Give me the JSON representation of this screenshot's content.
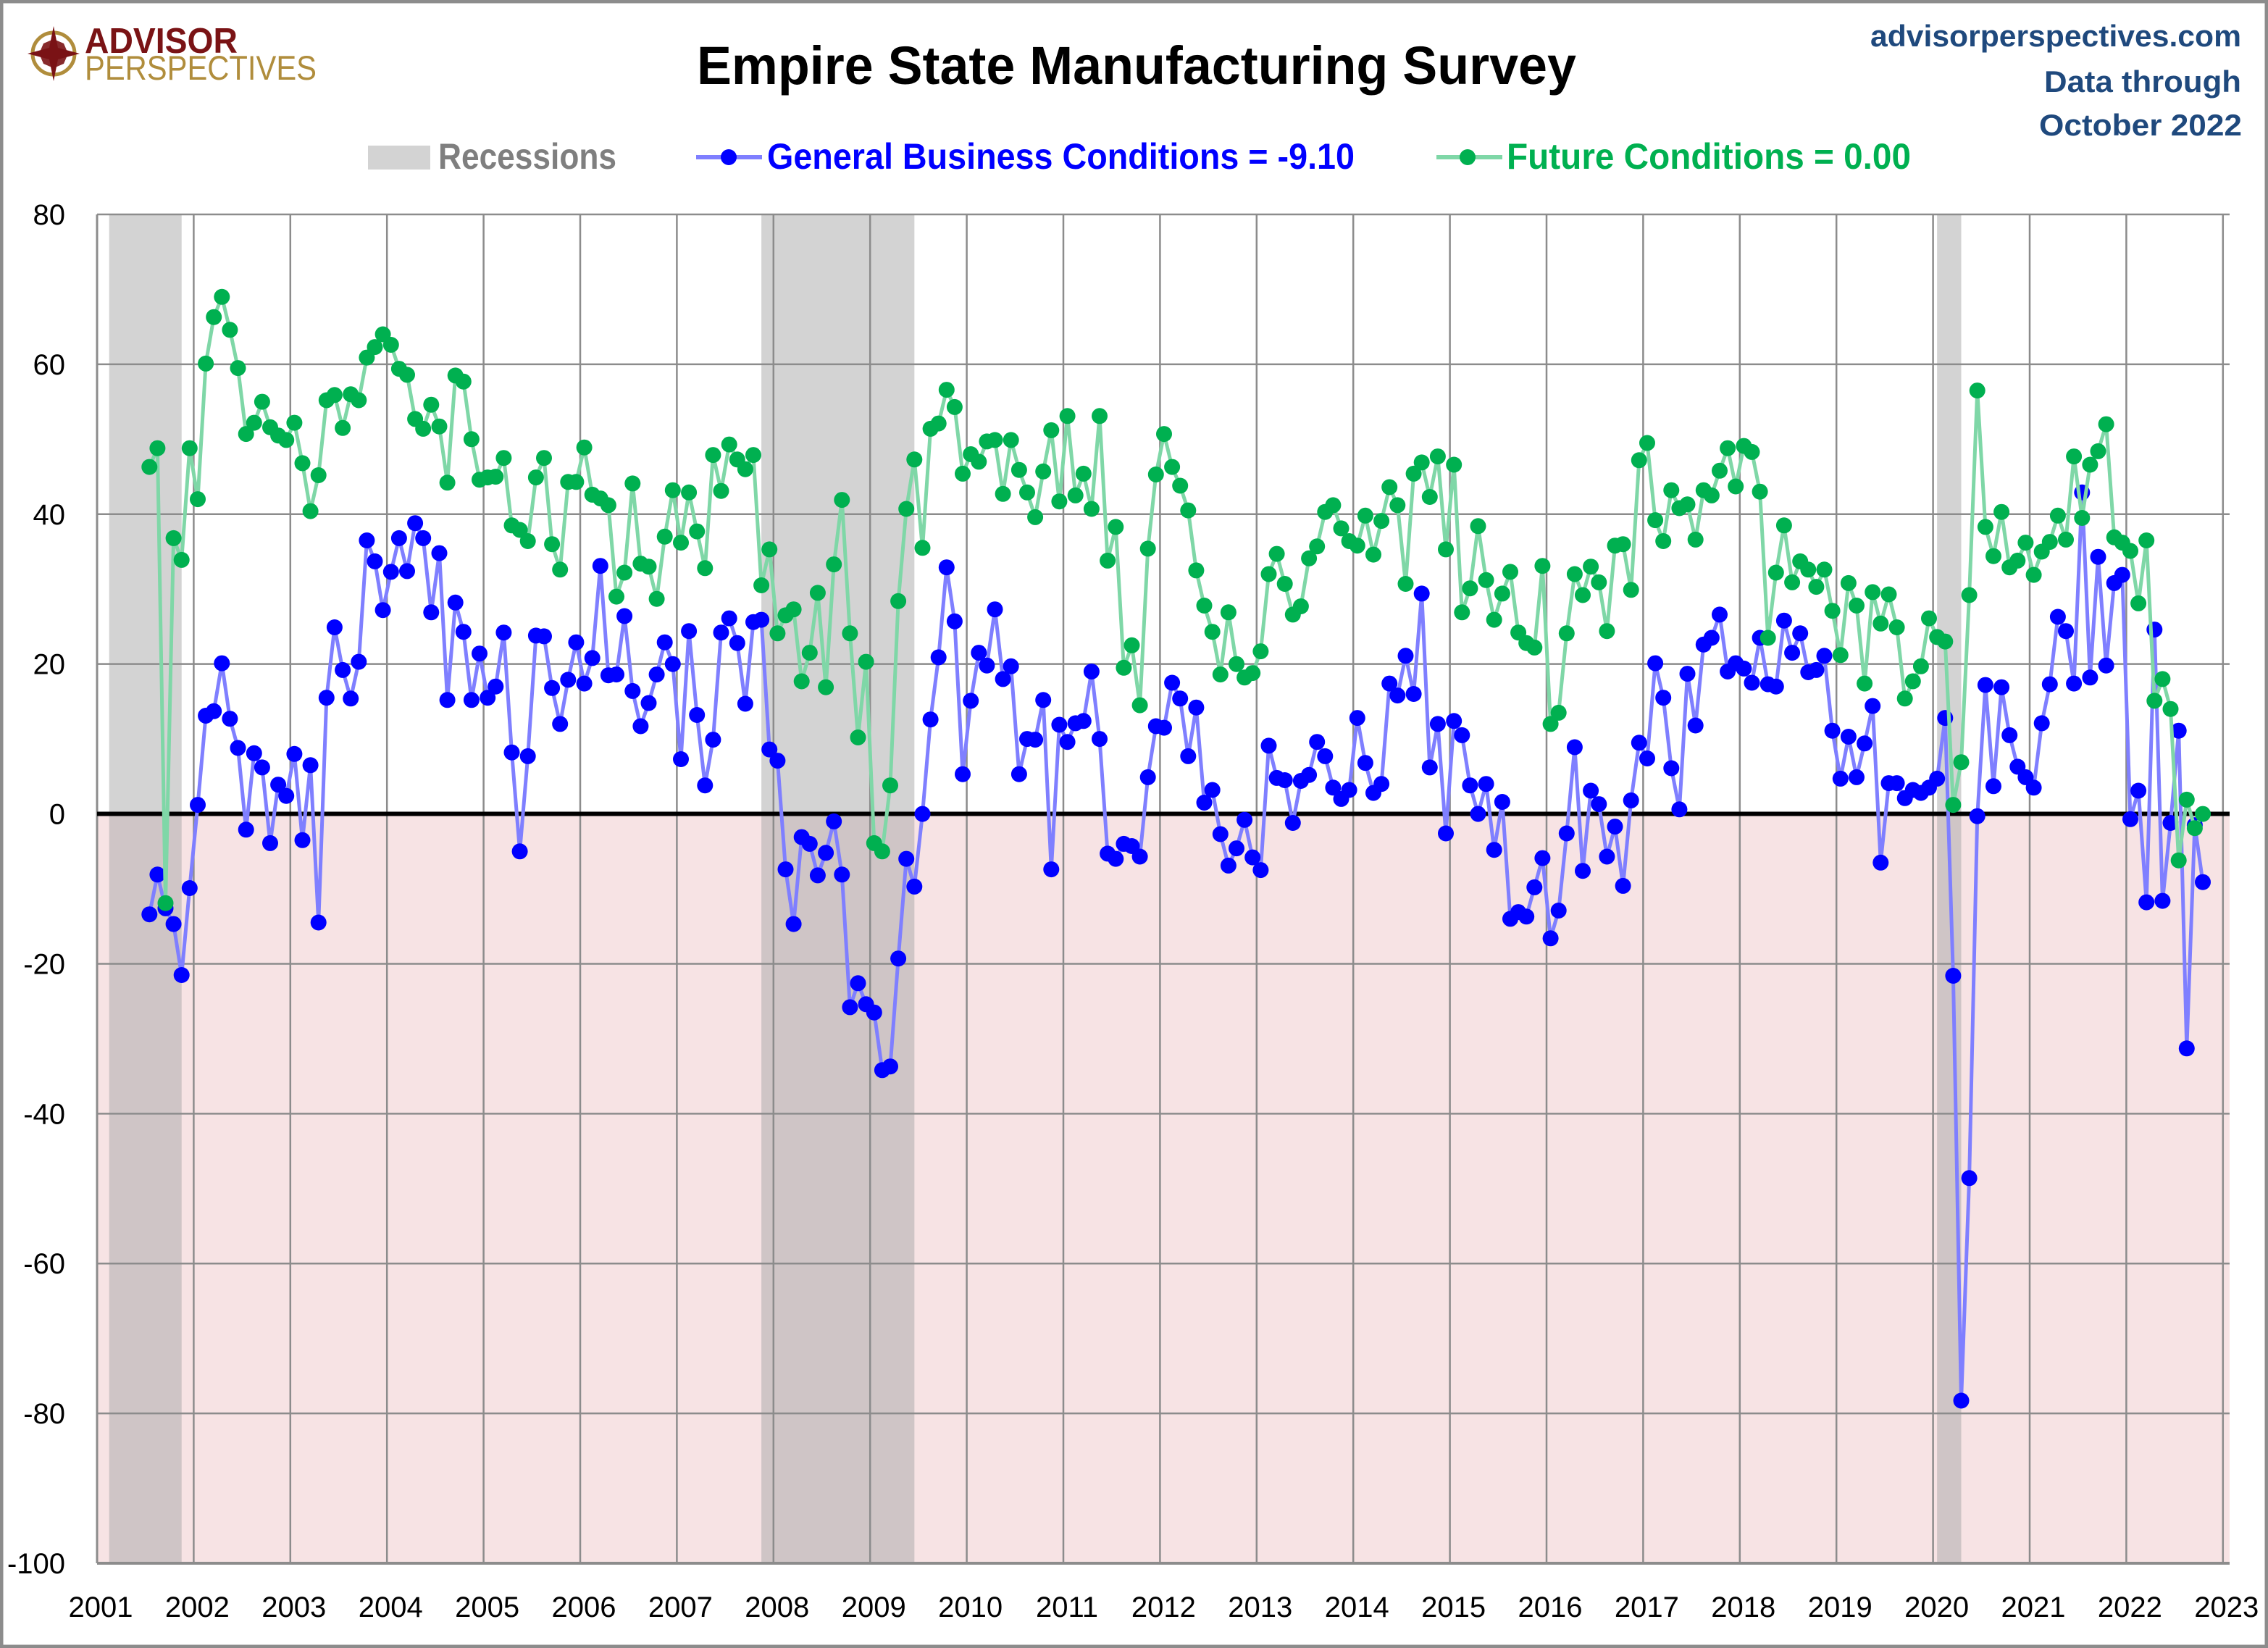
{
  "header": {
    "logo_line1": "ADVISOR",
    "logo_line2": "PERSPECTIVES",
    "site": "advisorperspectives.com",
    "data_through_line1": "Data through",
    "data_through_line2": "October 2022"
  },
  "colors": {
    "logo_red": "#7a1315",
    "logo_gold": "#b08d3c",
    "site_text": "#1f497d",
    "recession_legend": "#d3d3d3",
    "recession_text": "#7f7f7f",
    "gbc": "#0000ff",
    "gbc_line": "#7f7fff",
    "future": "#00b050",
    "future_line": "#7fd7a7",
    "negative_zone": "#f7e3e4",
    "grid": "#8c8c8c"
  },
  "chart_data": {
    "type": "line",
    "title": "Empire State Manufacturing Survey",
    "xlabel": "",
    "ylabel": "",
    "ylim": [
      -100,
      80
    ],
    "xlim": [
      "2001-01",
      "2023-01"
    ],
    "grid": true,
    "legend_position": "top",
    "yticks": [
      80,
      60,
      40,
      20,
      0,
      -20,
      -40,
      -60,
      -80,
      -100
    ],
    "ytick_labels": [
      "80",
      "60",
      "40",
      "20",
      "0",
      "-20",
      "-40",
      "-60",
      "-80",
      "-100"
    ],
    "xtick_labels": [
      "2001",
      "2002",
      "2003",
      "2004",
      "2005",
      "2006",
      "2007",
      "2008",
      "2009",
      "2010",
      "2011",
      "2012",
      "2013",
      "2014",
      "2015",
      "2016",
      "2017",
      "2018",
      "2019",
      "2020",
      "2021",
      "2022",
      "2023"
    ],
    "reference_line": 0,
    "negative_region_shaded": true,
    "legend": {
      "recessions": "Recessions",
      "gbc": "General Business Conditions = -9.10",
      "future": "Future Conditions = 0.00"
    },
    "recessions": [
      {
        "start": "2001-03",
        "end": "2001-11"
      },
      {
        "start": "2007-12",
        "end": "2009-06"
      },
      {
        "start": "2020-02",
        "end": "2020-04"
      }
    ],
    "x_start": "2001-07",
    "x_end": "2022-10",
    "frequency": "monthly",
    "series": [
      {
        "name": "General Business Conditions",
        "latest": -9.1,
        "values": [
          -13.4,
          -8.1,
          -12.6,
          -14.7,
          -21.5,
          -9.9,
          1.2,
          13.1,
          13.7,
          20.1,
          12.7,
          8.8,
          -2.1,
          8.1,
          6.2,
          -3.9,
          3.9,
          2.4,
          8.0,
          -3.5,
          6.5,
          -14.5,
          15.5,
          24.9,
          19.2,
          15.4,
          20.3,
          36.5,
          33.7,
          27.2,
          32.3,
          36.8,
          32.4,
          38.8,
          36.8,
          26.9,
          34.8,
          15.2,
          28.2,
          24.3,
          15.2,
          21.4,
          15.5,
          17.0,
          24.2,
          8.2,
          -5.0,
          7.7,
          23.8,
          23.7,
          16.8,
          12.0,
          17.9,
          22.9,
          17.4,
          20.8,
          33.1,
          18.5,
          18.6,
          26.4,
          16.4,
          11.7,
          14.8,
          18.6,
          22.9,
          20.0,
          7.3,
          24.4,
          13.2,
          3.8,
          9.9,
          24.2,
          26.1,
          22.8,
          14.7,
          25.6,
          25.9,
          8.6,
          7.1,
          -7.4,
          -14.7,
          -3.1,
          -4.0,
          -8.2,
          -5.2,
          -1.0,
          -8.1,
          -25.8,
          -22.6,
          -25.4,
          -26.5,
          -34.2,
          -33.7,
          -19.3,
          -6.0,
          -9.7,
          0.0,
          12.6,
          20.9,
          32.9,
          25.7,
          5.3,
          15.1,
          21.5,
          19.8,
          27.3,
          18.0,
          19.7,
          5.3,
          10.0,
          9.9,
          15.2,
          -7.4,
          11.9,
          9.6,
          12.1,
          12.4,
          19.0,
          10.0,
          -5.3,
          -6.0,
          -4.0,
          -4.3,
          -5.7,
          4.9,
          11.7,
          11.5,
          17.5,
          15.4,
          7.7,
          14.2,
          1.5,
          3.2,
          -2.7,
          -6.9,
          -4.6,
          -0.8,
          -5.8,
          -7.5,
          9.1,
          4.8,
          4.5,
          -1.2,
          4.4,
          5.2,
          9.6,
          7.7,
          3.5,
          2.0,
          3.2,
          12.8,
          6.8,
          2.8,
          4.0,
          17.4,
          15.8,
          21.1,
          16.0,
          29.4,
          6.2,
          12.0,
          -2.6,
          12.4,
          10.5,
          3.8,
          0.0,
          4.0,
          -4.8,
          1.6,
          -14.0,
          -13.1,
          -13.7,
          -9.8,
          -5.9,
          -16.6,
          -12.9,
          -2.6,
          8.9,
          -7.6,
          3.1,
          1.3,
          -5.7,
          -1.7,
          -9.6,
          1.8,
          9.5,
          7.4,
          20.1,
          15.5,
          6.1,
          0.6,
          18.7,
          11.8,
          22.6,
          23.5,
          26.6,
          19.0,
          20.1,
          19.4,
          17.5,
          23.5,
          17.3,
          17.0,
          25.8,
          21.5,
          24.1,
          18.9,
          19.2,
          21.1,
          11.1,
          4.7,
          10.3,
          4.9,
          9.4,
          14.4,
          -6.5,
          4.1,
          4.1,
          2.1,
          3.2,
          2.8,
          3.5,
          4.7,
          12.8,
          -21.6,
          -78.3,
          -48.6,
          -0.3,
          17.2,
          3.7,
          16.9,
          10.5,
          6.3,
          4.9,
          3.5,
          12.1,
          17.3,
          26.3,
          24.4,
          17.4,
          42.9,
          18.2,
          34.3,
          19.8,
          30.8,
          31.9,
          -0.7,
          3.1,
          -11.8,
          24.6,
          -11.6,
          -1.2,
          11.1,
          -31.3,
          -1.5,
          -9.1
        ]
      },
      {
        "name": "Future Conditions",
        "latest": 0.0,
        "values": [
          46.3,
          48.8,
          -11.9,
          36.8,
          33.9,
          48.8,
          42.0,
          60.1,
          66.3,
          69.0,
          64.6,
          59.5,
          50.7,
          52.2,
          55.0,
          51.6,
          50.5,
          49.9,
          52.2,
          46.8,
          40.4,
          45.2,
          55.2,
          55.9,
          51.5,
          56.0,
          55.2,
          60.9,
          62.3,
          64.0,
          62.6,
          59.4,
          58.6,
          52.7,
          51.4,
          54.6,
          51.7,
          44.2,
          58.5,
          57.7,
          50.0,
          44.6,
          44.9,
          45.0,
          47.5,
          38.5,
          37.9,
          36.4,
          44.9,
          47.5,
          36.0,
          32.6,
          44.3,
          44.3,
          48.9,
          42.6,
          42.1,
          41.2,
          29.0,
          32.2,
          44.1,
          33.4,
          33.0,
          28.7,
          37.0,
          43.2,
          36.2,
          42.9,
          37.7,
          32.8,
          47.9,
          43.1,
          49.3,
          47.3,
          46.0,
          47.9,
          30.5,
          35.3,
          24.1,
          26.5,
          27.3,
          17.7,
          21.5,
          29.5,
          16.9,
          33.3,
          41.9,
          24.1,
          10.2,
          20.3,
          -3.9,
          -5.0,
          3.8,
          28.4,
          40.7,
          47.3,
          35.5,
          51.4,
          52.1,
          56.6,
          54.3,
          45.4,
          48.0,
          47.0,
          49.7,
          49.9,
          42.7,
          49.9,
          45.9,
          42.9,
          39.6,
          45.7,
          51.2,
          41.7,
          53.1,
          42.5,
          45.4,
          40.7,
          53.1,
          33.8,
          38.3,
          19.5,
          22.5,
          14.5,
          35.4,
          45.3,
          50.7,
          46.3,
          43.8,
          40.5,
          32.5,
          27.8,
          24.3,
          18.6,
          26.9,
          20.0,
          18.2,
          18.8,
          21.7,
          32.0,
          34.7,
          30.7,
          26.6,
          27.7,
          34.1,
          35.7,
          40.3,
          41.2,
          38.1,
          36.4,
          35.8,
          39.8,
          34.6,
          39.1,
          43.6,
          41.2,
          30.7,
          45.4,
          46.9,
          42.3,
          47.7,
          35.3,
          46.6,
          26.9,
          30.1,
          38.4,
          31.2,
          25.9,
          29.4,
          32.3,
          24.2,
          22.8,
          22.2,
          33.1,
          12.0,
          13.5,
          24.1,
          32.0,
          29.2,
          33.0,
          30.9,
          24.4,
          35.8,
          36.0,
          29.9,
          47.2,
          49.5,
          39.2,
          36.4,
          43.2,
          40.8,
          41.3,
          36.6,
          43.2,
          42.5,
          45.8,
          48.8,
          43.7,
          49.1,
          48.3,
          43.0,
          23.5,
          32.2,
          38.5,
          30.9,
          33.7,
          32.6,
          30.3,
          32.6,
          27.1,
          21.2,
          30.8,
          27.8,
          17.4,
          29.6,
          25.4,
          29.3,
          24.9,
          15.4,
          17.7,
          19.7,
          26.1,
          23.6,
          23.0,
          1.2,
          6.9,
          29.2,
          56.5,
          38.3,
          34.4,
          40.3,
          32.9,
          33.8,
          36.2,
          31.9,
          35.0,
          36.3,
          39.8,
          36.6,
          47.7,
          39.5,
          46.6,
          48.4,
          52.0,
          36.9,
          36.2,
          35.1,
          28.1,
          36.5,
          15.1,
          18.0,
          14.0,
          -6.2,
          1.9,
          -1.9,
          0.0
        ]
      }
    ]
  }
}
